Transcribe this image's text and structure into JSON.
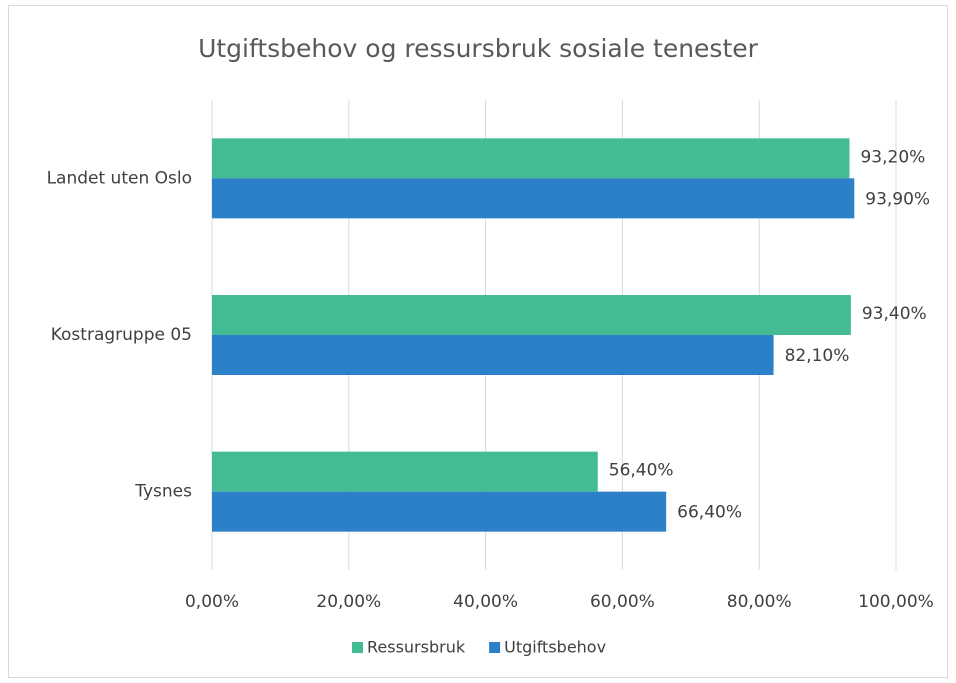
{
  "chart_data": {
    "type": "bar",
    "title": "Utgiftsbehov og ressursbruk sosiale tenester",
    "categories": [
      "Landet uten Oslo",
      "Kostragruppe 05",
      "Tysnes"
    ],
    "series": [
      {
        "name": "Ressursbruk",
        "color": "#43bb94",
        "values": [
          93.2,
          93.4,
          56.4
        ],
        "value_labels": [
          "93,20%",
          "93,40%",
          "56,40%"
        ]
      },
      {
        "name": "Utgiftsbehov",
        "color": "#2b80c8",
        "values": [
          93.9,
          82.1,
          66.4
        ],
        "value_labels": [
          "93,90%",
          "82,10%",
          "66,40%"
        ]
      }
    ],
    "xlim": [
      0,
      100
    ],
    "xticks": [
      {
        "value": 0,
        "label": "0,00%"
      },
      {
        "value": 20,
        "label": "20,00%"
      },
      {
        "value": 40,
        "label": "40,00%"
      },
      {
        "value": 60,
        "label": "60,00%"
      },
      {
        "value": 80,
        "label": "80,00%"
      },
      {
        "value": 100,
        "label": "100,00%"
      }
    ],
    "grid": true,
    "legend": "bottom"
  }
}
